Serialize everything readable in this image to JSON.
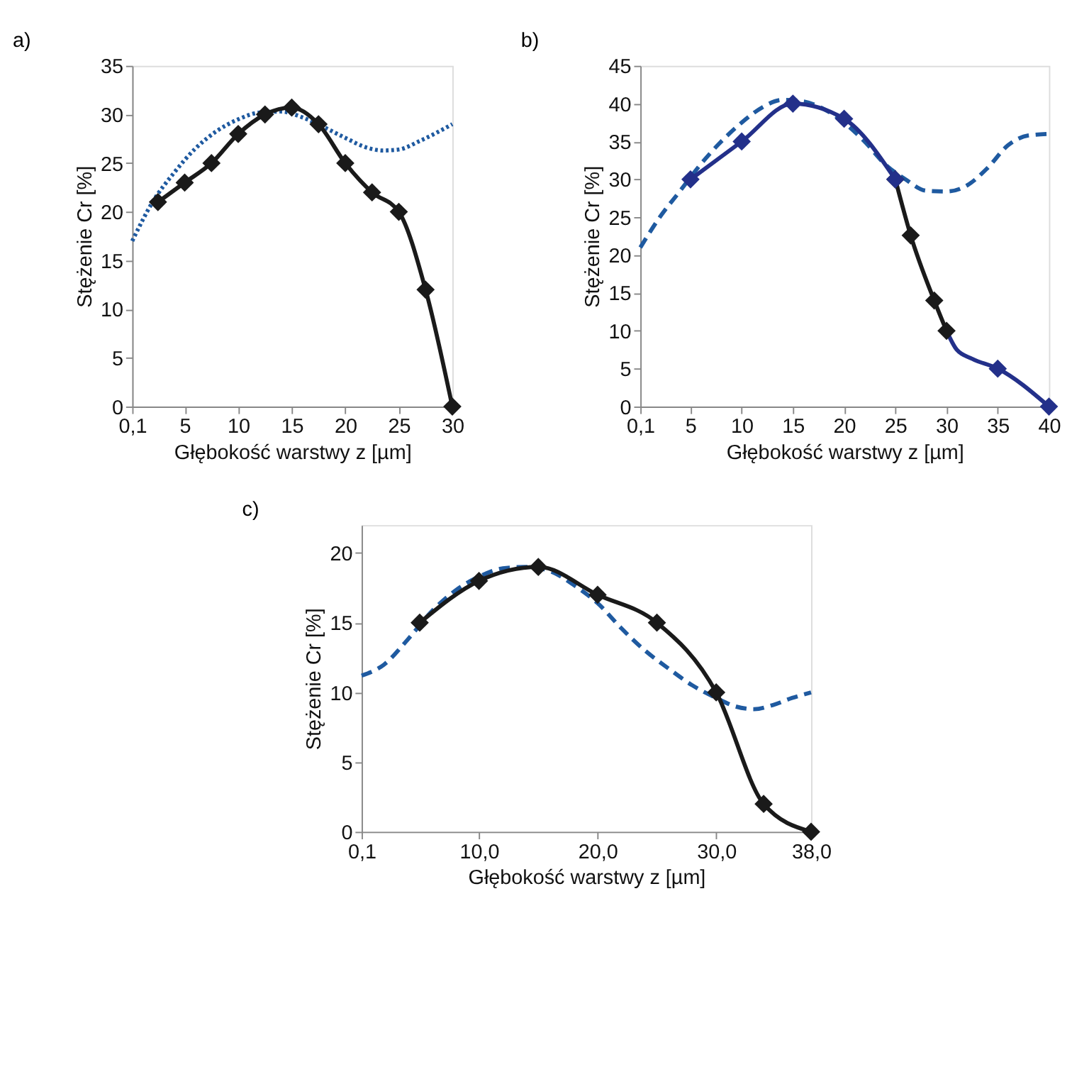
{
  "chart_data": [
    {
      "type": "line",
      "title": "a)",
      "xlabel": "Głębokość warstwy z [µm]",
      "ylabel": "Stężenie Cr  [%]",
      "xlim": [
        0.1,
        30
      ],
      "xticks": [
        {
          "value": 0.1,
          "label": "0,1"
        },
        5,
        10,
        15,
        20,
        25,
        30
      ],
      "ylim": [
        0,
        35
      ],
      "yticks": [
        0,
        5,
        10,
        15,
        20,
        25,
        30,
        35
      ],
      "grid": false,
      "series": [
        {
          "color": "#1f5aa0",
          "line_style": "dotted",
          "marker": "none",
          "x": [
            0.1,
            2,
            4,
            6,
            8,
            10,
            12,
            14,
            16,
            18,
            20,
            22,
            23.5,
            25,
            27,
            30
          ],
          "values": [
            17,
            21,
            24,
            26.5,
            28.3,
            29.5,
            30.2,
            30.3,
            29.7,
            28.7,
            27.6,
            26.6,
            26.3,
            26.4,
            27.3,
            29
          ]
        },
        {
          "color": "#1a1a1a",
          "line_style": "solid",
          "marker": "diamond",
          "x": [
            2.5,
            5,
            7.5,
            10,
            12.5,
            15,
            17.5,
            20,
            22.5,
            25,
            27.5,
            30
          ],
          "values": [
            21,
            23,
            25,
            28,
            30,
            30.7,
            29,
            25,
            22,
            20,
            12,
            0
          ]
        }
      ]
    },
    {
      "type": "line",
      "title": "b)",
      "xlabel": "Głębokość warstwy z [µm]",
      "ylabel": "Stężenie Cr  [%]",
      "xlim": [
        0.1,
        40
      ],
      "xticks": [
        {
          "value": 0.1,
          "label": "0,1"
        },
        5,
        10,
        15,
        20,
        25,
        30,
        35,
        40
      ],
      "ylim": [
        0,
        45
      ],
      "yticks": [
        0,
        5,
        10,
        15,
        20,
        25,
        30,
        35,
        40,
        45
      ],
      "grid": false,
      "series": [
        {
          "color": "#1f5aa0",
          "line_style": "dashed",
          "marker": "none",
          "x": [
            0.1,
            2,
            4,
            6,
            8,
            10,
            12,
            14,
            16,
            18,
            20,
            22,
            24,
            26,
            28,
            30,
            32,
            34,
            36,
            38,
            40
          ],
          "values": [
            21,
            25,
            28.5,
            32,
            35,
            37.5,
            39.5,
            40.5,
            40.3,
            39.3,
            37.5,
            35,
            32,
            30,
            28.5,
            28.4,
            29.2,
            31.5,
            34.5,
            35.8,
            36
          ]
        },
        {
          "color": "#23308a",
          "line_style": "solid",
          "marker": "none",
          "x": [
            30,
            31,
            32.5,
            35,
            40
          ],
          "values": [
            10,
            7.5,
            6.3,
            5,
            0
          ]
        },
        {
          "type": "scatter",
          "color": "#23308a",
          "marker": "diamond",
          "x": [
            35,
            40
          ],
          "values": [
            5,
            0
          ]
        },
        {
          "color": "#1a1a1a",
          "line_style": "solid",
          "marker": "diamond",
          "x": [
            25,
            26.5,
            28.8,
            30
          ],
          "values": [
            30,
            22.6,
            14,
            10
          ]
        },
        {
          "color": "#23308a",
          "line_style": "solid",
          "marker": "diamond",
          "x": [
            5,
            10,
            15,
            20,
            25
          ],
          "values": [
            30,
            35,
            40,
            38,
            30
          ]
        }
      ]
    },
    {
      "type": "line",
      "title": "c)",
      "xlabel": "Głębokość warstwy z [µm]",
      "ylabel": "Stężenie Cr  [%]",
      "xlim": [
        0.1,
        38
      ],
      "xticks": [
        {
          "value": 0.1,
          "label": "0,1"
        },
        {
          "value": 10,
          "label": "10,0"
        },
        {
          "value": 20,
          "label": "20,0"
        },
        {
          "value": 30,
          "label": "30,0"
        },
        {
          "value": 38,
          "label": "38,0"
        }
      ],
      "ylim": [
        0,
        22
      ],
      "yticks": [
        0,
        5,
        10,
        15,
        20
      ],
      "grid": false,
      "series": [
        {
          "color": "#1f5aa0",
          "line_style": "dashed",
          "marker": "none",
          "x": [
            0.1,
            2,
            4,
            6,
            8,
            10,
            12,
            14,
            16,
            18,
            20,
            22,
            24,
            26,
            28,
            30,
            31.6,
            33.2,
            34.8,
            36.4,
            38
          ],
          "values": [
            11.2,
            12,
            13.8,
            15.8,
            17.3,
            18.3,
            18.9,
            19,
            18.7,
            17.7,
            16.4,
            14.6,
            13,
            11.7,
            10.5,
            9.6,
            9,
            8.8,
            9.1,
            9.6,
            10
          ]
        },
        {
          "color": "#1a1a1a",
          "line_style": "solid",
          "marker": "diamond",
          "x": [
            5,
            10,
            15,
            20,
            25,
            30,
            34,
            38
          ],
          "values": [
            15,
            18,
            19,
            17,
            15,
            10,
            2,
            0
          ]
        }
      ]
    }
  ]
}
